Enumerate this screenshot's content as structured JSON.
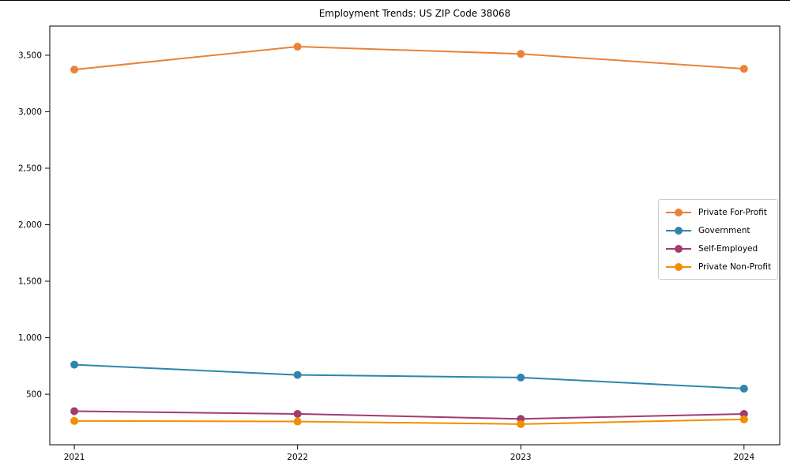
{
  "title": "Employment Trends: US ZIP Code 38068",
  "chart_data": {
    "type": "line",
    "title": "Employment Trends: US ZIP Code 38068",
    "xlabel": "",
    "ylabel": "",
    "grid": false,
    "legend_position": "center-right",
    "x": [
      2021,
      2022,
      2023,
      2024
    ],
    "xtick_labels": [
      "2021",
      "2022",
      "2023",
      "2024"
    ],
    "ytick_values": [
      500,
      1000,
      1500,
      2000,
      2500,
      3000,
      3500
    ],
    "ytick_labels": [
      "500",
      "1,000",
      "1,500",
      "2,000",
      "2,500",
      "3,000",
      "3,500"
    ],
    "xlim": [
      2020.89,
      2024.16
    ],
    "ylim": [
      53,
      3758
    ],
    "series": [
      {
        "name": "Private For-Profit",
        "color": "#E8833A",
        "values": [
          3373,
          3576,
          3512,
          3380
        ]
      },
      {
        "name": "Government",
        "color": "#2E86AB",
        "values": [
          762,
          671,
          648,
          550
        ]
      },
      {
        "name": "Self-Employed",
        "color": "#A23B72",
        "values": [
          350,
          326,
          282,
          326
        ]
      },
      {
        "name": "Private Non-Profit",
        "color": "#F18F01",
        "values": [
          264,
          259,
          236,
          278
        ]
      }
    ]
  }
}
